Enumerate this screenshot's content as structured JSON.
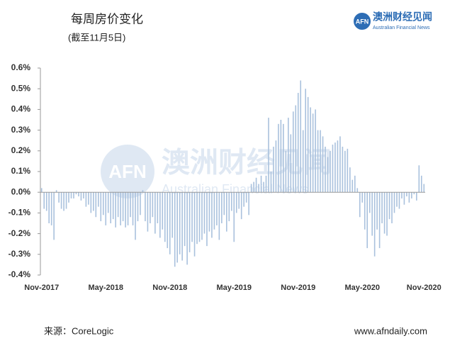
{
  "chart_data": {
    "type": "bar",
    "title": "每周房价变化",
    "subtitle": "(截至11月5日)",
    "categories": [
      "Nov-2017",
      null,
      null,
      null,
      null,
      null,
      null,
      null,
      null,
      null,
      null,
      null,
      null,
      null,
      null,
      null,
      null,
      null,
      null,
      null,
      null,
      null,
      null,
      null,
      null,
      null,
      "May-2018",
      null,
      null,
      null,
      null,
      null,
      null,
      null,
      null,
      null,
      null,
      null,
      null,
      null,
      null,
      null,
      null,
      null,
      null,
      null,
      null,
      null,
      null,
      null,
      null,
      null,
      "Nov-2018",
      null,
      null,
      null,
      null,
      null,
      null,
      null,
      null,
      null,
      null,
      null,
      null,
      null,
      null,
      null,
      null,
      null,
      null,
      null,
      null,
      null,
      null,
      null,
      null,
      null,
      "May-2019",
      null,
      null,
      null,
      null,
      null,
      null,
      null,
      null,
      null,
      null,
      null,
      null,
      null,
      null,
      null,
      null,
      null,
      null,
      null,
      null,
      null,
      null,
      null,
      null,
      null,
      "Nov-2019",
      null,
      null,
      null,
      null,
      null,
      null,
      null,
      null,
      null,
      null,
      null,
      null,
      null,
      null,
      null,
      null,
      null,
      null,
      null,
      null,
      null,
      null,
      null,
      null,
      null,
      "May-2020",
      null,
      null,
      null,
      null,
      null,
      null,
      null,
      null,
      null,
      null,
      null,
      null,
      null,
      null,
      null,
      null,
      null,
      null,
      null,
      null,
      null,
      null,
      null,
      null,
      "Nov-2020"
    ],
    "values": [
      0.02,
      -0.08,
      -0.09,
      -0.15,
      -0.16,
      -0.23,
      0.01,
      -0.05,
      -0.08,
      -0.09,
      -0.08,
      -0.05,
      -0.03,
      -0.03,
      -0.01,
      -0.02,
      -0.04,
      -0.03,
      -0.07,
      -0.06,
      -0.1,
      -0.09,
      -0.12,
      -0.07,
      -0.14,
      -0.11,
      -0.16,
      -0.1,
      -0.15,
      -0.13,
      -0.17,
      -0.12,
      -0.16,
      -0.14,
      -0.17,
      -0.16,
      -0.12,
      -0.16,
      -0.23,
      -0.14,
      -0.11,
      0.01,
      -0.14,
      -0.19,
      -0.15,
      -0.12,
      -0.2,
      -0.15,
      -0.22,
      -0.18,
      -0.24,
      -0.27,
      -0.3,
      -0.22,
      -0.36,
      -0.34,
      -0.3,
      -0.33,
      -0.26,
      -0.35,
      -0.29,
      -0.24,
      -0.31,
      -0.25,
      -0.24,
      -0.23,
      -0.2,
      -0.26,
      -0.19,
      -0.22,
      -0.18,
      -0.16,
      -0.23,
      -0.15,
      -0.11,
      -0.19,
      -0.14,
      -0.09,
      -0.24,
      -0.1,
      -0.08,
      -0.13,
      -0.07,
      -0.05,
      -0.11,
      0.04,
      0.05,
      0.07,
      0.04,
      0.08,
      0.05,
      0.08,
      0.36,
      0.1,
      0.22,
      0.25,
      0.33,
      0.35,
      0.33,
      0.2,
      0.36,
      0.28,
      0.39,
      0.42,
      0.48,
      0.54,
      0.3,
      0.5,
      0.46,
      0.41,
      0.38,
      0.4,
      0.3,
      0.3,
      0.27,
      0.22,
      0.17,
      0.2,
      0.23,
      0.24,
      0.25,
      0.27,
      0.22,
      0.2,
      0.21,
      0.12,
      0.06,
      0.08,
      0.02,
      -0.12,
      -0.05,
      -0.18,
      -0.27,
      -0.1,
      -0.21,
      -0.31,
      -0.18,
      -0.27,
      -0.15,
      -0.2,
      -0.21,
      -0.13,
      -0.15,
      -0.1,
      -0.07,
      -0.08,
      -0.03,
      -0.06,
      -0.02,
      -0.05,
      -0.03,
      -0.01,
      -0.04,
      0.13,
      0.08,
      0.04
    ],
    "color": "#a9c1dd",
    "ylim": [
      -0.4,
      0.6
    ],
    "yticks": [
      {
        "value": -0.4,
        "label": "-0.4%"
      },
      {
        "value": -0.3,
        "label": "-0.3%"
      },
      {
        "value": -0.2,
        "label": "-0.2%"
      },
      {
        "value": -0.1,
        "label": "-0.1%"
      },
      {
        "value": 0,
        "label": "0.0%"
      },
      {
        "value": 0.1,
        "label": "0.1%"
      },
      {
        "value": 0.2,
        "label": "0.2%"
      },
      {
        "value": 0.3,
        "label": "0.3%"
      },
      {
        "value": 0.4,
        "label": "0.4%"
      },
      {
        "value": 0.5,
        "label": "0.5%"
      },
      {
        "value": 0.6,
        "label": "0.6%"
      }
    ],
    "grid": false
  },
  "logo": {
    "mark": "AFN",
    "name": "澳洲财经见闻",
    "english": "Australian Financial News"
  },
  "source": "来源：CoreLogic",
  "website": "www.afndaily.com"
}
